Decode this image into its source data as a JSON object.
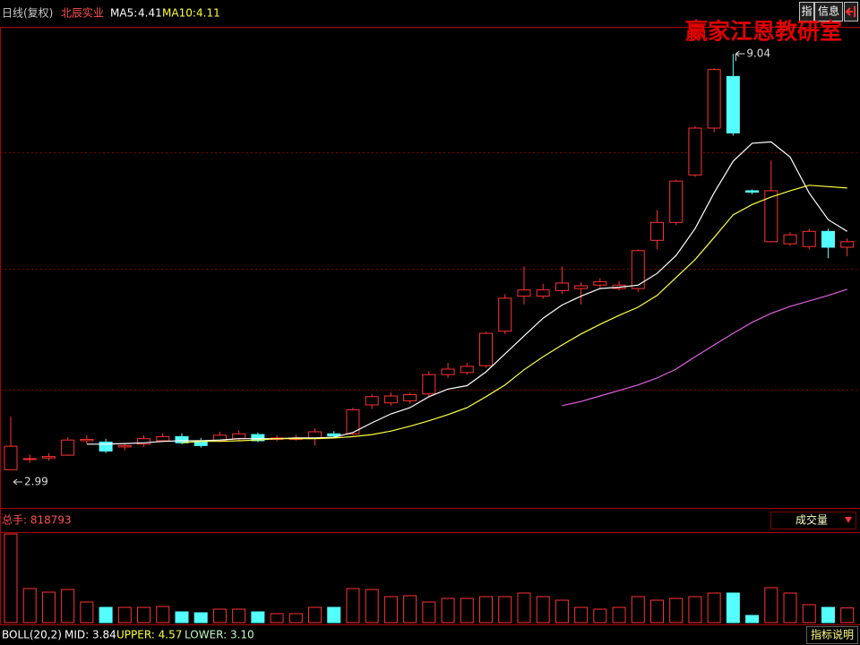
{
  "chart_data": {
    "type": "candlestick",
    "period_label": "日线(复权)",
    "stock_name": "北辰实业",
    "watermark": "赢家江恩教研室",
    "buttons": [
      "指",
      "信息"
    ],
    "ylim": [
      2.47,
      9.43
    ],
    "up_color": "#ff3232",
    "down_color": "#54ffff",
    "open": [
      3.0,
      3.15,
      3.17,
      3.21,
      3.42,
      3.4,
      3.33,
      3.37,
      3.42,
      3.48,
      3.42,
      3.42,
      3.45,
      3.51,
      3.44,
      3.44,
      3.45,
      3.52,
      3.52,
      3.94,
      3.97,
      4.0,
      4.1,
      4.38,
      4.41,
      4.51,
      5.01,
      5.52,
      5.52,
      5.6,
      5.63,
      5.68,
      5.63,
      5.63,
      6.33,
      6.59,
      7.28,
      7.96,
      8.71,
      7.05,
      6.31,
      6.28,
      6.24,
      6.46,
      6.23
    ],
    "high": [
      3.77,
      3.22,
      3.24,
      3.47,
      3.5,
      3.45,
      3.38,
      3.5,
      3.53,
      3.53,
      3.46,
      3.55,
      3.57,
      3.54,
      3.5,
      3.51,
      3.6,
      3.56,
      3.9,
      4.1,
      4.12,
      4.12,
      4.43,
      4.55,
      4.55,
      5.0,
      5.55,
      5.95,
      5.7,
      5.95,
      5.72,
      5.78,
      5.74,
      6.2,
      6.77,
      7.21,
      7.99,
      8.83,
      9.04,
      7.07,
      7.49,
      6.45,
      6.5,
      6.5,
      6.36
    ],
    "low": [
      2.99,
      3.1,
      3.13,
      3.2,
      3.38,
      3.24,
      3.28,
      3.33,
      3.4,
      3.37,
      3.32,
      3.4,
      3.42,
      3.4,
      3.41,
      3.42,
      3.35,
      3.47,
      3.5,
      3.88,
      3.93,
      3.96,
      4.05,
      4.33,
      4.38,
      4.48,
      4.97,
      5.4,
      5.48,
      5.55,
      5.4,
      5.63,
      5.6,
      5.58,
      6.2,
      6.55,
      7.25,
      7.9,
      7.85,
      7.0,
      6.3,
      6.25,
      6.2,
      6.07,
      6.1
    ],
    "close": [
      3.34,
      3.16,
      3.19,
      3.43,
      3.44,
      3.27,
      3.35,
      3.45,
      3.48,
      3.39,
      3.35,
      3.5,
      3.52,
      3.42,
      3.46,
      3.46,
      3.55,
      3.49,
      3.87,
      4.06,
      4.07,
      4.09,
      4.38,
      4.46,
      4.5,
      4.98,
      5.49,
      5.61,
      5.61,
      5.71,
      5.67,
      5.73,
      5.68,
      6.18,
      6.59,
      7.19,
      7.96,
      8.81,
      7.89,
      7.03,
      7.05,
      6.41,
      6.46,
      6.23,
      6.31
    ],
    "max_label": "9.04",
    "min_label": "2.99",
    "series": [
      {
        "name": "MA5:",
        "value_label": "4.41",
        "color": "#ffffff",
        "values": [
          null,
          null,
          null,
          null,
          3.37,
          3.37,
          3.38,
          3.39,
          3.41,
          3.42,
          3.42,
          3.43,
          3.45,
          3.45,
          3.45,
          3.46,
          3.46,
          3.47,
          3.54,
          3.68,
          3.81,
          3.9,
          4.06,
          4.17,
          4.22,
          4.42,
          4.68,
          4.94,
          5.2,
          5.39,
          5.52,
          5.63,
          5.65,
          5.68,
          5.85,
          6.11,
          6.5,
          7.02,
          7.48,
          7.74,
          7.76,
          7.54,
          7.02,
          6.63,
          6.46
        ]
      },
      {
        "name": "MA10:",
        "value_label": "4.11",
        "color": "#ffff40",
        "values": [
          null,
          null,
          null,
          null,
          null,
          null,
          null,
          null,
          null,
          3.39,
          3.41,
          3.41,
          3.42,
          3.43,
          3.45,
          3.45,
          3.45,
          3.46,
          3.48,
          3.51,
          3.56,
          3.63,
          3.71,
          3.8,
          3.9,
          4.06,
          4.23,
          4.45,
          4.64,
          4.81,
          4.97,
          5.11,
          5.24,
          5.36,
          5.53,
          5.79,
          6.05,
          6.37,
          6.7,
          6.85,
          6.96,
          7.05,
          7.13,
          7.11,
          7.09
        ]
      },
      {
        "color": "#e060e0",
        "values": [
          null,
          null,
          null,
          null,
          null,
          null,
          null,
          null,
          null,
          null,
          null,
          null,
          null,
          null,
          null,
          null,
          null,
          null,
          null,
          null,
          null,
          null,
          null,
          null,
          null,
          null,
          null,
          null,
          null,
          3.93,
          3.99,
          4.07,
          4.15,
          4.23,
          4.33,
          4.46,
          4.64,
          4.81,
          4.98,
          5.14,
          5.27,
          5.37,
          5.45,
          5.53,
          5.62
        ]
      }
    ],
    "volume": {
      "title": "总手: 818793",
      "indicator_name": "成交量",
      "ylim": [
        0,
        5000000
      ],
      "values": [
        4950000,
        1900000,
        1700000,
        1850000,
        1150000,
        850000,
        850000,
        850000,
        900000,
        600000,
        550000,
        750000,
        750000,
        600000,
        500000,
        500000,
        850000,
        850000,
        1900000,
        1850000,
        1450000,
        1500000,
        1150000,
        1350000,
        1350000,
        1450000,
        1450000,
        1650000,
        1450000,
        1250000,
        850000,
        750000,
        850000,
        1450000,
        1250000,
        1350000,
        1450000,
        1650000,
        1650000,
        400000,
        1950000,
        1650000,
        1000000,
        850000,
        818793
      ]
    },
    "indicator": {
      "name": "BOLL(20,2)",
      "mid": "MID: 3.84",
      "upper": "UPPER: 4.57",
      "lower": "LOWER: 3.10",
      "help": "指标说明"
    }
  }
}
